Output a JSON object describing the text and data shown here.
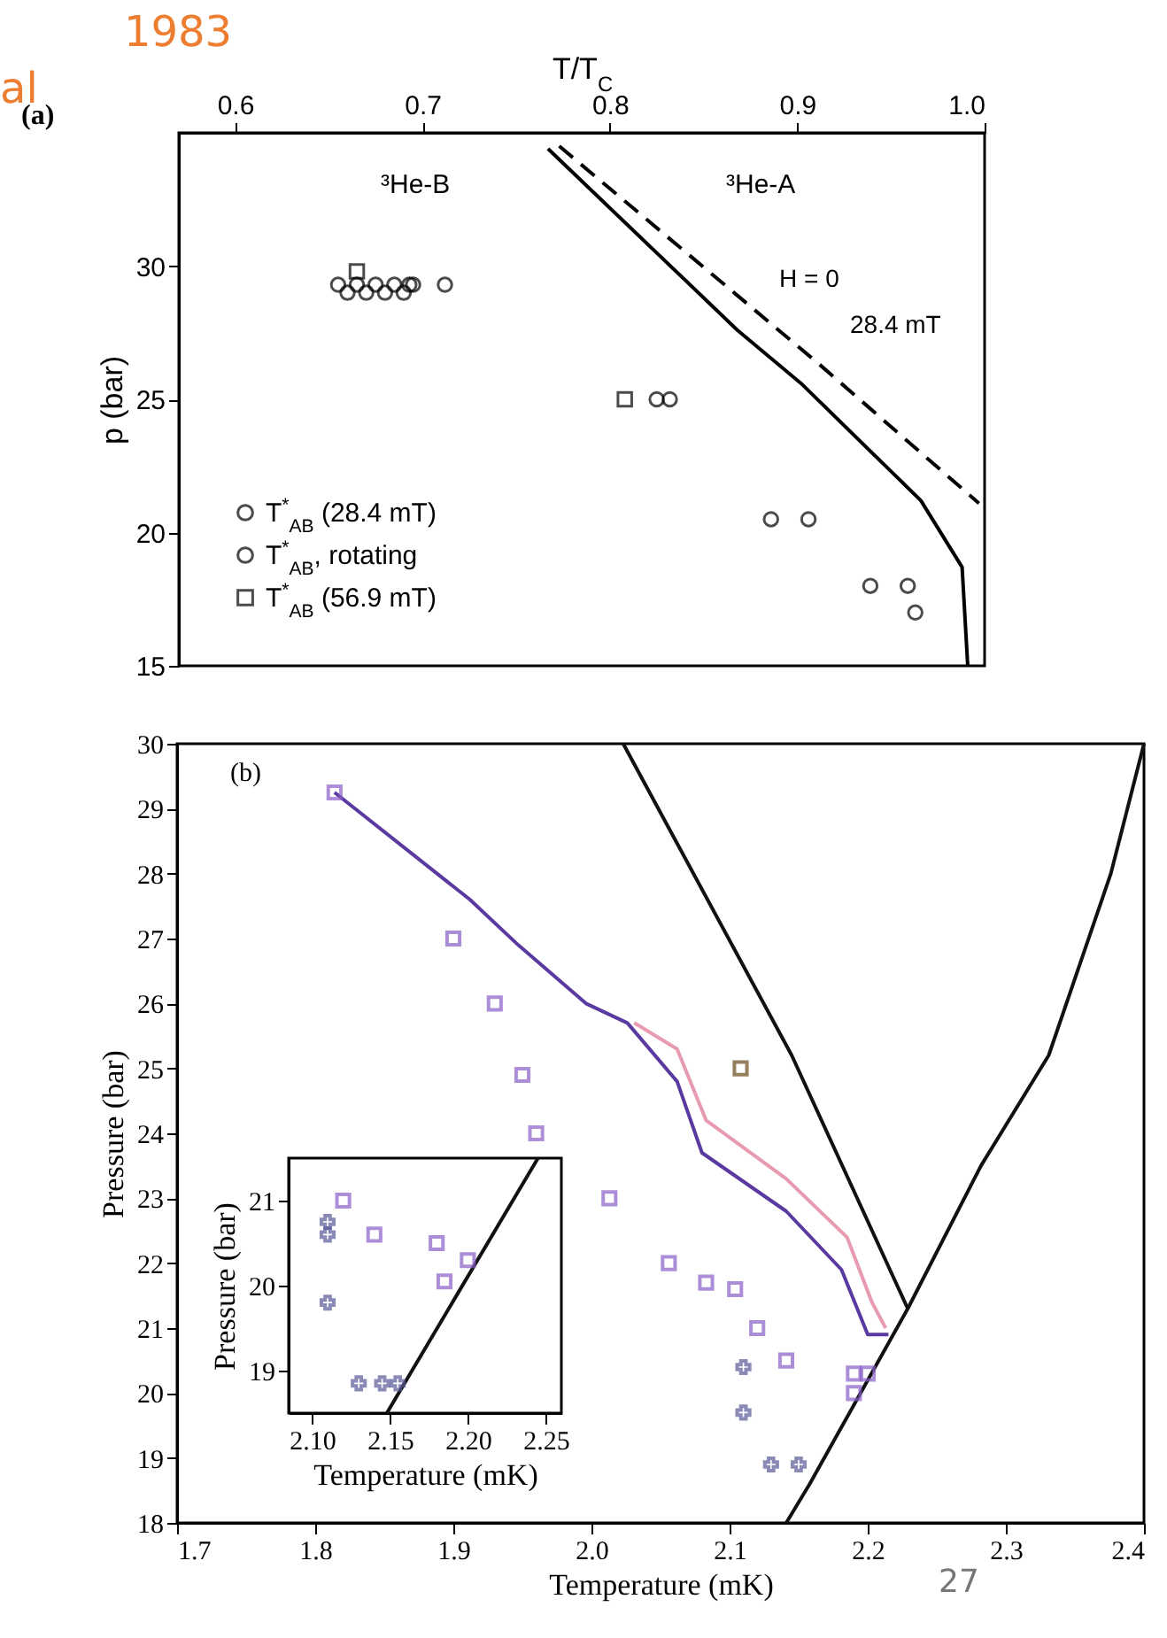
{
  "chart_data": [
    {
      "type": "scatter",
      "xlabel": "T/T$_{C}$",
      "ylabel": "p (bar)",
      "xlim": [
        0.57,
        1.0
      ],
      "ylim": [
        15,
        35
      ],
      "xticks": [
        0.6,
        0.7,
        0.8,
        0.9,
        {
          "value": 1.0,
          "label": "1.0"
        }
      ],
      "yticks": [
        15,
        20,
        25,
        30
      ],
      "legend": "bottom left",
      "annotations": [
        "1983",
        "al",
        "(a)",
        "³He-B",
        "³He-A",
        "H = 0",
        "28.4 mT"
      ],
      "series": [
        {
          "name": "T$^{*}$$_{AB}$ (28.4 mT)",
          "marker": "circle",
          "color": "#000000",
          "x": [
            0.655,
            0.66,
            0.665,
            0.67,
            0.675,
            0.68,
            0.685,
            0.69,
            0.695,
            0.712,
            0.825,
            0.832,
            0.886,
            0.906,
            0.939,
            0.959,
            0.963
          ],
          "values": [
            29.3,
            29.0,
            29.3,
            29.0,
            29.3,
            29.0,
            29.3,
            29.0,
            29.3,
            29.3,
            25,
            25,
            20.5,
            20.5,
            18,
            18,
            17
          ]
        },
        {
          "name": "T$^{*}$$_{AB}$, rotating",
          "marker": "circle",
          "color": "#000000",
          "x": [
            0.693
          ],
          "values": [
            29.3
          ]
        },
        {
          "name": "T$^{*}$$_{AB}$ (56.9 mT)",
          "marker": "square",
          "color": "#000000",
          "x": [
            0.665,
            0.808
          ],
          "values": [
            29.8,
            25
          ]
        },
        {
          "type": "line",
          "line_style": "solid",
          "color": "#000000",
          "x": [
            0.767,
            0.868,
            0.902,
            0.966,
            0.988,
            0.991
          ],
          "values": [
            34.4,
            27.6,
            25.6,
            21.2,
            18.7,
            15
          ]
        },
        {
          "type": "line",
          "line_style": "dashed",
          "color": "#000000",
          "x": [
            0.773,
            0.868,
            0.912,
            0.997
          ],
          "values": [
            34.5,
            28.9,
            26.3,
            21.1
          ]
        }
      ]
    },
    {
      "type": "line",
      "xlabel": "Temperature (mK)",
      "ylabel": "Pressure (bar)",
      "xlim": [
        1.7,
        2.4
      ],
      "ylim": [
        18,
        30
      ],
      "xticks": [
        1.7,
        1.8,
        1.9,
        {
          "value": 2.0,
          "label": "2.0"
        },
        2.1,
        2.2,
        2.3,
        2.4
      ],
      "yticks": [
        18,
        19,
        20,
        21,
        22,
        23,
        24,
        25,
        26,
        27,
        28,
        29,
        30
      ],
      "annotations": [
        "(b)",
        "27"
      ],
      "series": [
        {
          "line_style": "solid",
          "color": "#111111",
          "x": [
            2.023,
            2.145,
            2.229
          ],
          "values": [
            30,
            25.2,
            21.3
          ]
        },
        {
          "line_style": "solid",
          "color": "#111111",
          "x": [
            2.141,
            2.158,
            2.229,
            2.282,
            2.331,
            2.376,
            2.4
          ],
          "values": [
            18,
            18.6,
            21.3,
            23.5,
            25.2,
            28.0,
            30
          ]
        },
        {
          "line_style": "solid",
          "color": "#5a3aa0",
          "x": [
            1.814,
            1.912,
            1.947,
            1.996,
            2.026,
            2.062,
            2.08,
            2.141,
            2.181,
            2.2,
            2.215
          ],
          "values": [
            29.25,
            27.6,
            26.9,
            26.0,
            25.7,
            24.8,
            23.7,
            22.8,
            21.9,
            20.9,
            20.9
          ]
        },
        {
          "line_style": "solid",
          "color": "#e89ab0",
          "x": [
            2.031,
            2.062,
            2.083,
            2.141,
            2.185,
            2.203,
            2.213
          ],
          "values": [
            25.7,
            25.3,
            24.2,
            23.3,
            22.4,
            21.4,
            21.0
          ]
        },
        {
          "type": "scatter",
          "marker": "square",
          "color": "#8a5fc8",
          "x": [
            1.814,
            1.9,
            1.93,
            1.95,
            1.96,
            2.013,
            2.056,
            2.083,
            2.104,
            2.12,
            2.141,
            2.19,
            2.19,
            2.2
          ],
          "values": [
            29.25,
            27,
            26,
            24.9,
            24,
            23,
            22,
            21.7,
            21.6,
            21,
            20.5,
            20.3,
            20,
            20.3
          ]
        },
        {
          "type": "scatter",
          "marker": "square",
          "color": "#6b4a1a",
          "x": [
            2.108
          ],
          "values": [
            25
          ]
        },
        {
          "type": "scatter",
          "marker": "cross",
          "color": "#5a5a9a",
          "x": [
            2.11,
            2.11,
            2.13,
            2.15
          ],
          "values": [
            20.4,
            19.7,
            18.9,
            18.9
          ]
        }
      ]
    },
    {
      "type": "scatter",
      "xlabel": "Temperature (mK)",
      "ylabel": "Pressure (bar)",
      "xlim": [
        2.085,
        2.26
      ],
      "ylim": [
        18.5,
        21.5
      ],
      "xticks": [
        {
          "value": 2.1,
          "label": "2.10"
        },
        2.15,
        {
          "value": 2.2,
          "label": "2.20"
        },
        2.25
      ],
      "yticks": [
        19,
        20,
        21
      ],
      "series": [
        {
          "type": "line",
          "line_style": "solid",
          "color": "#111111",
          "x": [
            2.148,
            2.245
          ],
          "values": [
            18.5,
            21.5
          ]
        },
        {
          "marker": "square",
          "color": "#8a5fc8",
          "x": [
            2.12,
            2.14,
            2.18,
            2.2,
            2.185
          ],
          "values": [
            21.0,
            20.6,
            20.5,
            20.3,
            20.05
          ]
        },
        {
          "marker": "cross",
          "color": "#5a5a9a",
          "x": [
            2.11,
            2.11,
            2.11,
            2.13,
            2.145,
            2.155
          ],
          "values": [
            20.75,
            20.6,
            19.8,
            18.85,
            18.85,
            18.85
          ]
        }
      ]
    }
  ]
}
